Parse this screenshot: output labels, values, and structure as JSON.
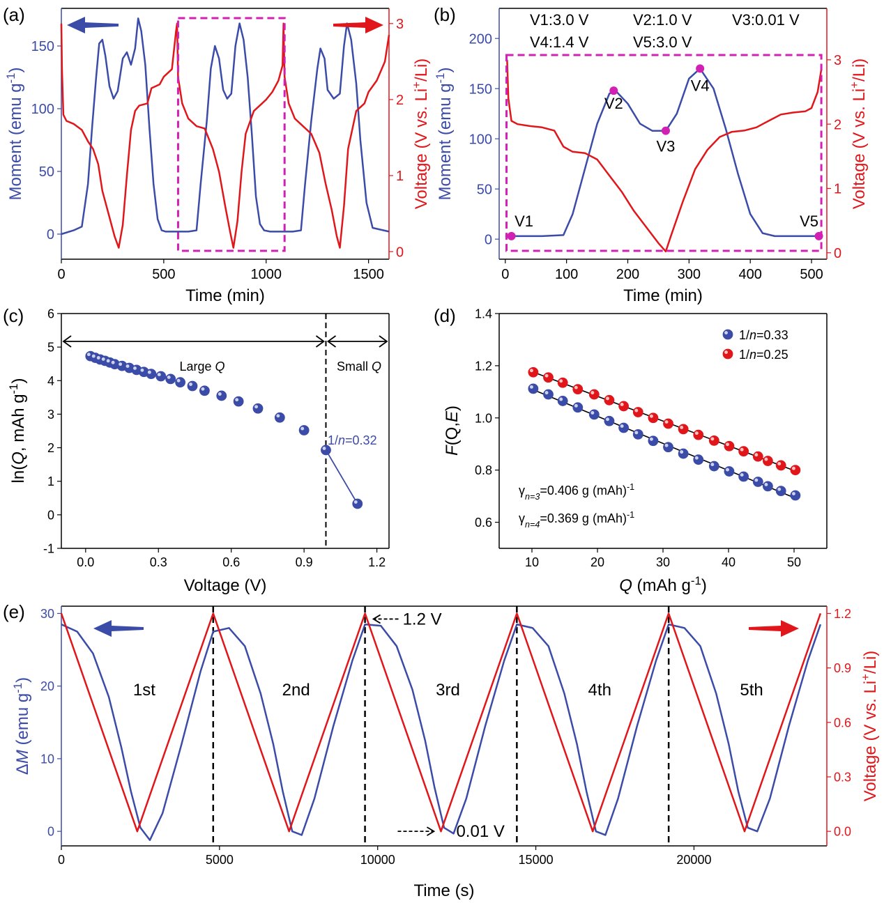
{
  "colors": {
    "blue": "#3B4BA8",
    "red": "#E0161A",
    "magenta": "#D21FB4",
    "black": "#000000"
  },
  "chart_data": [
    {
      "panel": "a",
      "type": "line",
      "xlabel": "Time (min)",
      "xlim": [
        0,
        1600
      ],
      "xticks": [
        0,
        500,
        1000,
        1500
      ],
      "ylabel_left": "Moment (emu g⁻¹)",
      "ylim_left": [
        -20,
        180
      ],
      "yticks_left": [
        0,
        50,
        100,
        150
      ],
      "ylabel_right": "Voltage (V vs. Li⁺/Li)",
      "ylim_right": [
        -0.1,
        3.2
      ],
      "yticks_right": [
        0,
        1,
        2,
        3
      ],
      "series": [
        {
          "axis": "left",
          "color": "blue",
          "x": [
            0,
            60,
            100,
            130,
            150,
            170,
            185,
            200,
            215,
            235,
            255,
            275,
            300,
            320,
            340,
            360,
            375,
            390,
            410,
            430,
            450,
            470,
            490,
            510,
            530,
            560,
            620,
            660,
            680,
            710,
            730,
            750,
            770,
            790,
            810,
            830,
            850,
            870,
            890,
            910,
            930,
            950,
            970,
            990,
            1020,
            1060,
            1130,
            1170,
            1190,
            1220,
            1250,
            1265,
            1285,
            1300,
            1330,
            1360,
            1380,
            1395,
            1415,
            1440,
            1460,
            1490,
            1520,
            1600
          ],
          "y": [
            0,
            3,
            6,
            40,
            85,
            125,
            152,
            155,
            142,
            118,
            108,
            114,
            140,
            145,
            135,
            148,
            172,
            162,
            135,
            85,
            40,
            12,
            3,
            2,
            2,
            2,
            2,
            3,
            40,
            90,
            132,
            150,
            140,
            115,
            108,
            112,
            150,
            168,
            155,
            125,
            80,
            30,
            8,
            3,
            2,
            2,
            2,
            3,
            40,
            90,
            132,
            148,
            140,
            115,
            108,
            112,
            150,
            168,
            155,
            120,
            75,
            25,
            5,
            2
          ]
        },
        {
          "axis": "right",
          "color": "red",
          "x": [
            0,
            3,
            10,
            25,
            60,
            100,
            130,
            155,
            180,
            200,
            230,
            260,
            280,
            300,
            320,
            340,
            360,
            380,
            420,
            440,
            480,
            500,
            520,
            540,
            560,
            565,
            570,
            590,
            620,
            660,
            700,
            740,
            770,
            800,
            825,
            840,
            860,
            880,
            900,
            940,
            980,
            1000,
            1030,
            1060,
            1080,
            1085,
            1090,
            1110,
            1140,
            1180,
            1220,
            1260,
            1290,
            1320,
            1345,
            1360,
            1380,
            1400,
            1440,
            1480,
            1500,
            1540,
            1580,
            1600
          ],
          "y": [
            3.0,
            2.4,
            1.8,
            1.72,
            1.68,
            1.6,
            1.45,
            1.35,
            1.15,
            0.8,
            0.5,
            0.2,
            0.05,
            0.35,
            1.0,
            1.6,
            1.85,
            1.92,
            1.95,
            2.15,
            2.2,
            2.3,
            2.35,
            2.4,
            2.9,
            3.0,
            2.3,
            1.95,
            1.75,
            1.65,
            1.62,
            1.35,
            1.05,
            0.6,
            0.25,
            0.05,
            0.4,
            1.05,
            1.55,
            1.85,
            1.95,
            2.0,
            2.1,
            2.25,
            2.45,
            3.0,
            2.3,
            1.95,
            1.75,
            1.65,
            1.55,
            1.3,
            0.9,
            0.55,
            0.2,
            0.05,
            0.6,
            1.35,
            1.85,
            1.95,
            2.1,
            2.25,
            2.5,
            2.85
          ]
        }
      ]
    },
    {
      "panel": "b",
      "type": "line",
      "xlabel": "Time (min)",
      "xlim": [
        -10,
        525
      ],
      "xticks": [
        0,
        100,
        200,
        300,
        400,
        500
      ],
      "ylabel_left": "Moment (emu g⁻¹)",
      "ylim_left": [
        -20,
        230
      ],
      "yticks_left": [
        0,
        50,
        100,
        150,
        200
      ],
      "ylabel_right": "Voltage (V vs. Li⁺/Li)",
      "ylim_right": [
        -0.1,
        3.8
      ],
      "yticks_right": [
        0,
        1,
        2,
        3
      ],
      "annotations": [
        "V1:3.0 V",
        "V2:1.0 V",
        "V3:0.01 V",
        "V4:1.4 V",
        "V5:3.0 V"
      ],
      "point_labels": [
        {
          "label": "V1",
          "x": 10,
          "y": 3
        },
        {
          "label": "V2",
          "x": 177,
          "y": 148
        },
        {
          "label": "V3",
          "x": 262,
          "y": 108
        },
        {
          "label": "V4",
          "x": 318,
          "y": 170
        },
        {
          "label": "V5",
          "x": 512,
          "y": 3
        }
      ],
      "series": [
        {
          "axis": "left",
          "color": "blue",
          "x": [
            0,
            20,
            60,
            95,
            110,
            130,
            150,
            170,
            180,
            200,
            220,
            240,
            262,
            280,
            300,
            318,
            340,
            360,
            380,
            400,
            420,
            440,
            470,
            512
          ],
          "y": [
            3,
            3,
            3,
            4,
            25,
            70,
            115,
            145,
            148,
            135,
            115,
            108,
            108,
            125,
            160,
            170,
            150,
            110,
            65,
            25,
            6,
            3,
            3,
            3
          ]
        },
        {
          "axis": "right",
          "color": "red",
          "x": [
            3,
            5,
            10,
            20,
            40,
            60,
            80,
            95,
            110,
            130,
            150,
            170,
            190,
            210,
            230,
            250,
            262,
            270,
            290,
            310,
            330,
            350,
            370,
            390,
            410,
            430,
            450,
            470,
            490,
            500,
            510,
            516
          ],
          "y": [
            3.0,
            2.4,
            2.05,
            2.0,
            1.97,
            1.95,
            1.9,
            1.65,
            1.57,
            1.55,
            1.45,
            1.2,
            0.95,
            0.65,
            0.4,
            0.15,
            0.02,
            0.25,
            0.8,
            1.3,
            1.6,
            1.8,
            1.88,
            1.9,
            1.95,
            2.05,
            2.15,
            2.18,
            2.2,
            2.25,
            2.5,
            2.85
          ]
        }
      ]
    },
    {
      "panel": "c",
      "type": "scatter",
      "xlabel": "Voltage (V)",
      "xlim": [
        -0.1,
        1.25
      ],
      "xticks": [
        0.0,
        0.3,
        0.6,
        0.9,
        1.2
      ],
      "ylabel": "ln(Q, mAh g⁻¹)",
      "ylim": [
        -1,
        6
      ],
      "yticks": [
        -1,
        0,
        1,
        2,
        3,
        4,
        5,
        6
      ],
      "annotations": [
        "Large Q",
        "Small Q",
        "1/n=0.32"
      ],
      "vline_x": 0.99,
      "series": [
        {
          "color": "blue",
          "x": [
            0.02,
            0.04,
            0.06,
            0.08,
            0.1,
            0.12,
            0.15,
            0.18,
            0.21,
            0.24,
            0.27,
            0.31,
            0.35,
            0.39,
            0.44,
            0.49,
            0.56,
            0.63,
            0.71,
            0.8,
            0.9,
            0.99,
            1.12
          ],
          "y": [
            4.73,
            4.68,
            4.63,
            4.59,
            4.54,
            4.49,
            4.44,
            4.38,
            4.32,
            4.26,
            4.2,
            4.13,
            4.05,
            3.95,
            3.84,
            3.7,
            3.55,
            3.38,
            3.17,
            2.9,
            2.52,
            1.93,
            0.33
          ]
        }
      ]
    },
    {
      "panel": "d",
      "type": "scatter",
      "xlabel": "Q (mAh g⁻¹)",
      "xlim": [
        5,
        55
      ],
      "xticks": [
        10,
        20,
        30,
        40,
        50
      ],
      "ylabel": "F(Q,E)",
      "ylim": [
        0.5,
        1.4
      ],
      "yticks": [
        0.6,
        0.8,
        1.0,
        1.2,
        1.4
      ],
      "annotations": [
        "γn=3=0.406 g (mAh)⁻¹",
        "γn=4=0.369 g (mAh)⁻¹"
      ],
      "legend": "top-right",
      "series": [
        {
          "name": "1/n=0.33",
          "color": "blue",
          "x": [
            10.2,
            12.5,
            14.7,
            17.0,
            19.5,
            21.8,
            24.0,
            26.2,
            28.5,
            30.8,
            33.1,
            35.4,
            37.8,
            40.1,
            42.3,
            44.5,
            46.0,
            48.0,
            50.2
          ],
          "y": [
            1.112,
            1.09,
            1.065,
            1.04,
            1.013,
            0.988,
            0.962,
            0.937,
            0.912,
            0.888,
            0.863,
            0.84,
            0.815,
            0.795,
            0.775,
            0.755,
            0.738,
            0.72,
            0.703
          ]
        },
        {
          "name": "1/n=0.25",
          "color": "red",
          "x": [
            10.2,
            12.5,
            14.7,
            17.0,
            19.5,
            21.8,
            24.0,
            26.2,
            28.5,
            30.8,
            33.1,
            35.4,
            37.8,
            40.1,
            42.3,
            44.5,
            46.0,
            48.0,
            50.2
          ],
          "y": [
            1.175,
            1.155,
            1.135,
            1.11,
            1.09,
            1.068,
            1.045,
            1.022,
            1.0,
            0.978,
            0.957,
            0.935,
            0.913,
            0.892,
            0.872,
            0.852,
            0.835,
            0.818,
            0.8
          ]
        }
      ]
    },
    {
      "panel": "e",
      "type": "line",
      "xlabel": "Time (s)",
      "xlim": [
        0,
        24200
      ],
      "xticks": [
        0,
        5000,
        10000,
        15000,
        20000
      ],
      "ylabel_left": "ΔM (emu g⁻¹)",
      "ylim_left": [
        -2,
        31
      ],
      "yticks_left": [
        0,
        10,
        20,
        30
      ],
      "ylabel_right": "Voltage (V vs. Li⁺/Li)",
      "ylim_right": [
        -0.08,
        1.24
      ],
      "yticks_right": [
        0.0,
        0.3,
        0.6,
        0.9,
        1.2
      ],
      "cycle_labels": [
        "1st",
        "2nd",
        "3rd",
        "4th",
        "5th"
      ],
      "annotations": [
        "1.2 V",
        "0.01 V"
      ],
      "vlines_x": [
        4800,
        9600,
        14400,
        19200
      ],
      "series": [
        {
          "axis": "right",
          "color": "red",
          "x": [
            0,
            2400,
            4800,
            7200,
            9600,
            12000,
            14400,
            16800,
            19200,
            21600,
            24000
          ],
          "y": [
            1.2,
            0.0,
            1.2,
            0.0,
            1.2,
            0.0,
            1.2,
            0.0,
            1.2,
            0.0,
            1.2
          ]
        },
        {
          "axis": "left",
          "color": "blue",
          "x": [
            0,
            500,
            1000,
            1500,
            1900,
            2200,
            2500,
            2800,
            3200,
            3800,
            4400,
            4800,
            5300,
            5800,
            6300,
            6700,
            7000,
            7300,
            7600,
            8000,
            8600,
            9200,
            9600,
            10100,
            10600,
            11100,
            11500,
            11800,
            12100,
            12400,
            12800,
            13400,
            14000,
            14400,
            14900,
            15400,
            15900,
            16300,
            16600,
            16900,
            17200,
            17600,
            18200,
            18800,
            19200,
            19700,
            20200,
            20700,
            21100,
            21400,
            21700,
            22000,
            22400,
            23000,
            23600,
            24000
          ],
          "y": [
            28.5,
            27.5,
            24.5,
            18.5,
            11.5,
            5.5,
            0.5,
            -1.2,
            2.5,
            12.0,
            22.0,
            27.5,
            28.0,
            25.5,
            19.0,
            12.0,
            5.5,
            0.0,
            -0.5,
            4.5,
            14.5,
            23.5,
            28.5,
            28.3,
            25.5,
            19.5,
            12.5,
            6.0,
            0.5,
            -0.3,
            4.5,
            14.5,
            23.5,
            28.5,
            28.0,
            25.5,
            19.0,
            12.0,
            5.5,
            0.0,
            -0.5,
            4.5,
            14.5,
            23.5,
            28.5,
            28.0,
            25.5,
            19.0,
            12.0,
            5.5,
            0.5,
            0.0,
            4.5,
            14.5,
            23.5,
            28.5
          ]
        }
      ]
    }
  ]
}
